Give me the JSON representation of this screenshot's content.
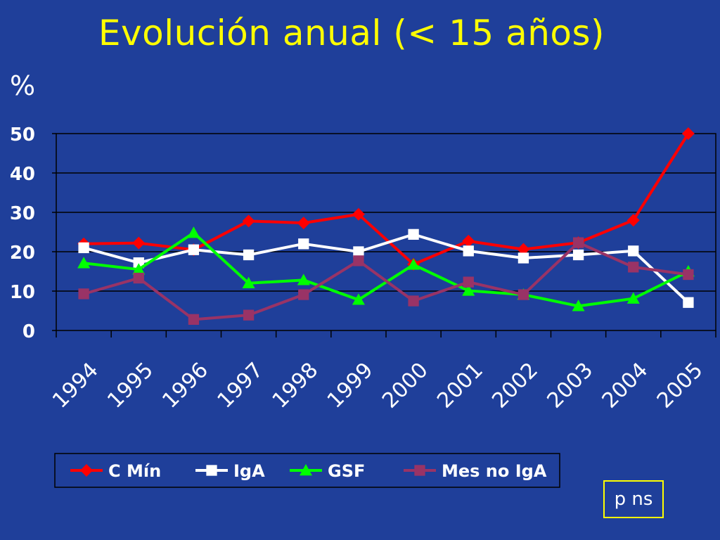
{
  "title": "Evolución anual (< 15 años)",
  "note": "p ns",
  "colors": {
    "background": "#1f3f9a",
    "title": "#ffff00",
    "text": "#ffffff",
    "gridline": "#000000"
  },
  "chart_data": {
    "type": "line",
    "ylabel": "%",
    "ylim": [
      0,
      50
    ],
    "yticks": [
      0,
      10,
      20,
      30,
      40,
      50
    ],
    "grid": "horizontal",
    "legend_position": "bottom",
    "categories": [
      "1994",
      "1995",
      "1996",
      "1997",
      "1998",
      "1999",
      "2000",
      "2001",
      "2002",
      "2003",
      "2004",
      "2005"
    ],
    "series": [
      {
        "name": "C Mín",
        "color": "#ff0000",
        "marker": "diamond",
        "values": [
          22,
          22.2,
          20.5,
          27.8,
          27.3,
          29.5,
          16.8,
          22.7,
          20.6,
          22.3,
          28,
          50
        ]
      },
      {
        "name": "IgA",
        "color": "#ffffff",
        "marker": "square",
        "values": [
          21,
          17.2,
          20.5,
          19.2,
          22,
          20,
          24.4,
          20.2,
          18.4,
          19.2,
          20.2,
          7.1
        ]
      },
      {
        "name": "GSF",
        "color": "#00ff00",
        "marker": "triangle",
        "values": [
          17.1,
          15.5,
          24.8,
          12,
          12.8,
          7.8,
          16.7,
          10.1,
          9.1,
          6.2,
          8.1,
          15
        ]
      },
      {
        "name": "Mes no IgA",
        "color": "#993366",
        "marker": "square",
        "values": [
          9.3,
          13.3,
          2.8,
          3.9,
          9.1,
          17.7,
          7.5,
          12.3,
          9.1,
          22.3,
          16.1,
          14.2
        ]
      }
    ]
  }
}
